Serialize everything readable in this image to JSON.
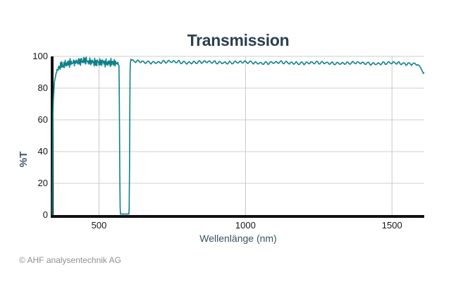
{
  "footer": {
    "copyright": "© AHF analysentechnik AG"
  },
  "colors": {
    "background": "#ffffff",
    "curve": "#0e8288",
    "axis": "#111111",
    "grid_h": "#cfcfcf",
    "grid_v": "#c9c9c9",
    "title_text": "#2b404f",
    "axis_label_text": "#37525f",
    "tick_text": "#161616",
    "copyright_text": "#909090"
  },
  "chart_data": {
    "type": "line",
    "title": "Transmission",
    "xlabel": "Wellenlänge (nm)",
    "ylabel": "%T",
    "xlim": [
      340,
      1610
    ],
    "ylim": [
      0,
      100
    ],
    "grid": true,
    "legend": "none",
    "x_ticks": [
      500,
      1000,
      1500
    ],
    "x_tick_labels": [
      "500",
      "1000",
      "1500"
    ],
    "y_ticks": [
      0,
      20,
      40,
      60,
      80,
      100
    ],
    "y_tick_labels": [
      "0",
      "20",
      "40",
      "60",
      "80",
      "100"
    ],
    "series": [
      {
        "name": "transmission",
        "color": "#0e8288",
        "keypoints": [
          [
            340,
            0
          ],
          [
            341,
            25
          ],
          [
            342,
            50
          ],
          [
            343,
            64
          ],
          [
            344,
            72
          ],
          [
            346,
            79
          ],
          [
            348,
            84
          ],
          [
            351,
            87
          ],
          [
            354,
            89.5
          ],
          [
            358,
            91.5
          ],
          [
            363,
            93
          ],
          [
            370,
            94
          ],
          [
            380,
            94.8
          ],
          [
            395,
            95.5
          ],
          [
            410,
            96.2
          ],
          [
            425,
            96.8
          ],
          [
            440,
            97
          ],
          [
            455,
            96.9
          ],
          [
            470,
            96.6
          ],
          [
            485,
            96.4
          ],
          [
            500,
            96.2
          ],
          [
            515,
            96.1
          ],
          [
            530,
            95.9
          ],
          [
            545,
            95.7
          ],
          [
            558,
            95.6
          ],
          [
            564,
            96.2
          ],
          [
            568,
            94
          ],
          [
            569,
            80
          ],
          [
            570,
            55
          ],
          [
            571,
            25
          ],
          [
            572,
            5
          ],
          [
            573,
            0.6
          ],
          [
            602,
            0.6
          ],
          [
            603,
            5
          ],
          [
            604,
            30
          ],
          [
            605,
            65
          ],
          [
            606,
            90
          ],
          [
            607,
            96
          ],
          [
            609,
            98.2
          ],
          [
            612,
            96.8
          ],
          [
            625,
            96.6
          ],
          [
            650,
            96.5
          ],
          [
            700,
            96.4
          ],
          [
            750,
            96.5
          ],
          [
            800,
            96.3
          ],
          [
            850,
            96.4
          ],
          [
            900,
            96.2
          ],
          [
            950,
            96.3
          ],
          [
            1000,
            96.2
          ],
          [
            1050,
            96.0
          ],
          [
            1100,
            96.1
          ],
          [
            1150,
            95.9
          ],
          [
            1200,
            96.0
          ],
          [
            1250,
            95.8
          ],
          [
            1300,
            95.9
          ],
          [
            1350,
            95.7
          ],
          [
            1400,
            95.8
          ],
          [
            1450,
            95.6
          ],
          [
            1500,
            95.7
          ],
          [
            1540,
            95.5
          ],
          [
            1570,
            95.6
          ],
          [
            1585,
            95.3
          ],
          [
            1592,
            94.3
          ],
          [
            1598,
            92.8
          ],
          [
            1603,
            90.8
          ],
          [
            1607,
            89.3
          ],
          [
            1610,
            89.8
          ]
        ],
        "noise_regions": [
          {
            "type": "fuzz",
            "from": 354,
            "to": 566,
            "amplitude": 2.4
          },
          {
            "type": "ripple",
            "from": 612,
            "to": 1588,
            "amplitude": 1.0
          }
        ],
        "blocking_band_nm": [
          578,
          604
        ]
      }
    ]
  }
}
